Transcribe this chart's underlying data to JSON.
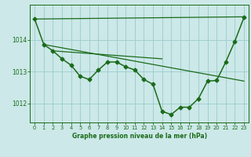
{
  "title": "Graphe pression niveau de la mer (hPa)",
  "bg_color": "#cce8e8",
  "grid_color": "#99cccc",
  "line_color": "#1a6b1a",
  "xlim": [
    -0.5,
    23.5
  ],
  "ylim": [
    1011.4,
    1015.1
  ],
  "yticks": [
    1012,
    1013,
    1014
  ],
  "xticks": [
    0,
    1,
    2,
    3,
    4,
    5,
    6,
    7,
    8,
    9,
    10,
    11,
    12,
    13,
    14,
    15,
    16,
    17,
    18,
    19,
    20,
    21,
    22,
    23
  ],
  "main_x": [
    0,
    1,
    2,
    3,
    4,
    5,
    6,
    7,
    8,
    9,
    10,
    11,
    12,
    13,
    14,
    15,
    16,
    17,
    18,
    19,
    20,
    21,
    22,
    23
  ],
  "main_y": [
    1014.65,
    1013.85,
    1013.65,
    1013.4,
    1013.2,
    1012.85,
    1012.75,
    1013.05,
    1013.3,
    1013.3,
    1013.15,
    1013.05,
    1012.75,
    1012.6,
    1011.75,
    1011.65,
    1011.88,
    1011.88,
    1012.15,
    1012.7,
    1012.72,
    1013.3,
    1013.95,
    1014.7
  ],
  "line1_x": [
    0,
    23
  ],
  "line1_y": [
    1014.65,
    1014.72
  ],
  "line2_x": [
    1,
    23
  ],
  "line2_y": [
    1013.85,
    1012.7
  ],
  "line3_x": [
    2,
    14
  ],
  "line3_y": [
    1013.65,
    1013.4
  ]
}
